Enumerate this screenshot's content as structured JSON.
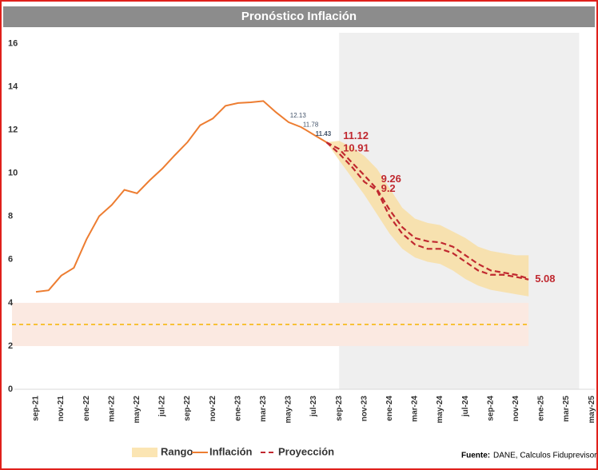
{
  "chart_data": {
    "type": "line",
    "title": "Pronóstico Inflación",
    "categories": [
      "sep-21",
      null,
      "nov-21",
      null,
      "ene-22",
      null,
      "mar-22",
      null,
      "may-22",
      null,
      "jul-22",
      null,
      "sep-22",
      null,
      "nov-22",
      null,
      "ene-23",
      null,
      "mar-23",
      null,
      "may-23",
      null,
      "jul-23",
      null,
      "sep-23",
      null,
      "nov-23",
      null,
      "ene-24",
      null,
      "mar-24",
      null,
      "may-24",
      null,
      "jul-24",
      null,
      "sep-24",
      null,
      "nov-24",
      null,
      "ene-25",
      null,
      "mar-25",
      null,
      "may-25"
    ],
    "ylim": [
      0,
      16.5
    ],
    "yticks": [
      0,
      2,
      4,
      6,
      8,
      10,
      12,
      14,
      16
    ],
    "series": [
      {
        "name": "Inflación",
        "color": "#ED7D31",
        "style": "solid",
        "values": [
          4.51,
          4.58,
          5.26,
          5.62,
          6.94,
          8.01,
          8.53,
          9.23,
          9.07,
          9.67,
          10.21,
          10.84,
          11.44,
          12.22,
          12.53,
          13.12,
          13.25,
          13.28,
          13.34,
          12.82,
          12.36,
          12.13,
          11.78,
          11.43,
          null,
          null,
          null,
          null,
          null,
          null,
          null,
          null,
          null,
          null,
          null,
          null,
          null,
          null,
          null,
          null,
          null,
          null,
          null,
          null,
          null
        ],
        "labeled": [
          21,
          22,
          23
        ]
      },
      {
        "name": "Proyección",
        "color": "#C0282F",
        "style": "dashed",
        "values": [
          null,
          null,
          null,
          null,
          null,
          null,
          null,
          null,
          null,
          null,
          null,
          null,
          null,
          null,
          null,
          null,
          null,
          null,
          null,
          null,
          null,
          null,
          null,
          11.43,
          11.12,
          10.5,
          9.9,
          9.26,
          8.3,
          7.5,
          7.0,
          6.85,
          6.8,
          6.6,
          6.2,
          5.8,
          5.5,
          5.4,
          5.3,
          5.12,
          null,
          null,
          null,
          null,
          null
        ],
        "labeled": [
          24,
          27
        ]
      },
      {
        "color": "#C0282F",
        "style": "dashed",
        "values": [
          null,
          null,
          null,
          null,
          null,
          null,
          null,
          null,
          null,
          null,
          null,
          null,
          null,
          null,
          null,
          null,
          null,
          null,
          null,
          null,
          null,
          null,
          null,
          11.43,
          10.91,
          10.3,
          9.6,
          9.2,
          8.0,
          7.2,
          6.7,
          6.5,
          6.5,
          6.3,
          5.9,
          5.5,
          5.3,
          5.3,
          5.2,
          5.08,
          null,
          null,
          null,
          null,
          null
        ],
        "labeled": [
          24,
          27,
          39
        ]
      }
    ],
    "range": {
      "name": "Rango",
      "color": "#F9DC9A",
      "upper": [
        null,
        null,
        null,
        null,
        null,
        null,
        null,
        null,
        null,
        null,
        null,
        null,
        null,
        null,
        null,
        null,
        null,
        null,
        null,
        null,
        null,
        null,
        null,
        11.43,
        11.5,
        11.2,
        10.8,
        10.2,
        9.3,
        8.4,
        7.9,
        7.7,
        7.6,
        7.3,
        7.0,
        6.6,
        6.4,
        6.3,
        6.2,
        6.2,
        null,
        null,
        null,
        null,
        null
      ],
      "lower": [
        null,
        null,
        null,
        null,
        null,
        null,
        null,
        null,
        null,
        null,
        null,
        null,
        null,
        null,
        null,
        null,
        null,
        null,
        null,
        null,
        null,
        null,
        null,
        11.43,
        10.6,
        9.8,
        9.0,
        8.1,
        7.2,
        6.5,
        6.1,
        5.9,
        5.8,
        5.5,
        5.1,
        4.8,
        4.6,
        4.5,
        4.4,
        4.3,
        null,
        null,
        null,
        null,
        null
      ]
    },
    "target": {
      "value": 3,
      "band": [
        2,
        4
      ],
      "color": "#F5B400",
      "band_color": "#FBE9E1",
      "until": 39
    },
    "forecast_region": [
      24,
      43
    ],
    "source": {
      "label": "Fuente:",
      "text": "DANE, Calculos Fiduprevisor"
    }
  }
}
